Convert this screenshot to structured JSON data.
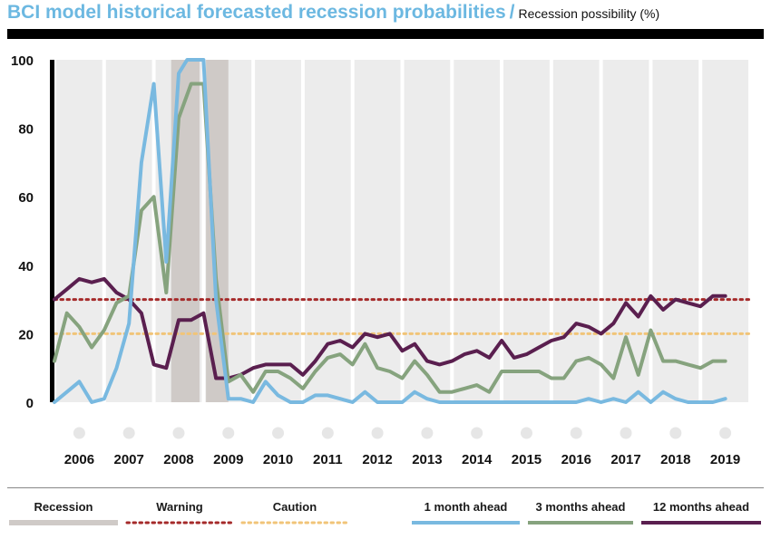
{
  "title": {
    "main": "BCI model historical forecasted recession probabilities",
    "separator": "/",
    "subtitle": "Recession possibility (%)"
  },
  "colors": {
    "one_month": "#79b9e0",
    "three_months": "#86a37e",
    "twelve_months": "#5a1f4f",
    "warning": "#a52a2a",
    "caution": "#f1c478",
    "recession": "#cfcac7",
    "panel": "#ececec",
    "marker": "#e6e6e6"
  },
  "legend": [
    {
      "key": "recession",
      "label": "Recession",
      "style": "solid-band"
    },
    {
      "key": "warning",
      "label": "Warning",
      "style": "dotted"
    },
    {
      "key": "caution",
      "label": "Caution",
      "style": "dotted"
    },
    {
      "key": "one_month",
      "label": "1 month ahead",
      "style": "line"
    },
    {
      "key": "three_months",
      "label": "3 months ahead",
      "style": "line"
    },
    {
      "key": "twelve_months",
      "label": "12 months ahead",
      "style": "line"
    }
  ],
  "chart_data": {
    "type": "line",
    "title": "BCI model historical forecasted recession probabilities",
    "ylabel": "Recession possibility (%)",
    "ylim": [
      0,
      100
    ],
    "yticks": [
      0,
      20,
      40,
      60,
      80,
      100
    ],
    "xlim": [
      2005.5,
      2019.5
    ],
    "xticks": [
      2006,
      2007,
      2008,
      2009,
      2010,
      2011,
      2012,
      2013,
      2014,
      2015,
      2016,
      2017,
      2018,
      2019
    ],
    "grid": "alternating year bands",
    "legend_position": "bottom",
    "recession_periods": [
      [
        2007.85,
        2008.42
      ],
      [
        2008.55,
        2009.0
      ]
    ],
    "reference_lines": [
      {
        "name": "Warning",
        "value": 30,
        "style": "dotted"
      },
      {
        "name": "Caution",
        "value": 20,
        "style": "dotted"
      }
    ],
    "series": [
      {
        "name": "1 month ahead",
        "color_key": "one_month",
        "x": [
          2005.5,
          2005.75,
          2006.0,
          2006.25,
          2006.5,
          2006.75,
          2007.0,
          2007.25,
          2007.5,
          2007.75,
          2008.0,
          2008.17,
          2008.33,
          2008.5,
          2008.75,
          2009.0,
          2009.25,
          2009.5,
          2009.75,
          2010.0,
          2010.25,
          2010.5,
          2010.75,
          2011.0,
          2011.25,
          2011.5,
          2011.75,
          2012.0,
          2012.25,
          2012.5,
          2012.75,
          2013.0,
          2013.25,
          2013.5,
          2013.75,
          2014.0,
          2014.25,
          2014.5,
          2014.75,
          2015.0,
          2015.25,
          2015.5,
          2015.75,
          2016.0,
          2016.25,
          2016.5,
          2016.75,
          2017.0,
          2017.25,
          2017.5,
          2017.75,
          2018.0,
          2018.25,
          2018.5,
          2018.75,
          2019.0
        ],
        "values": [
          0,
          3,
          6,
          0,
          1,
          10,
          23,
          70,
          93,
          41,
          96,
          100,
          100,
          100,
          30,
          1,
          1,
          0,
          6,
          2,
          0,
          0,
          2,
          2,
          1,
          0,
          3,
          0,
          0,
          0,
          3,
          1,
          0,
          0,
          0,
          0,
          0,
          0,
          0,
          0,
          0,
          0,
          0,
          0,
          1,
          0,
          1,
          0,
          3,
          0,
          3,
          1,
          0,
          0,
          0,
          1
        ]
      },
      {
        "name": "3 months ahead",
        "color_key": "three_months",
        "x": [
          2005.5,
          2005.75,
          2006.0,
          2006.25,
          2006.5,
          2006.75,
          2007.0,
          2007.25,
          2007.5,
          2007.75,
          2008.0,
          2008.25,
          2008.5,
          2008.75,
          2009.0,
          2009.25,
          2009.5,
          2009.75,
          2010.0,
          2010.25,
          2010.5,
          2010.75,
          2011.0,
          2011.25,
          2011.5,
          2011.75,
          2012.0,
          2012.25,
          2012.5,
          2012.75,
          2013.0,
          2013.25,
          2013.5,
          2013.75,
          2014.0,
          2014.25,
          2014.5,
          2014.75,
          2015.0,
          2015.25,
          2015.5,
          2015.75,
          2016.0,
          2016.25,
          2016.5,
          2016.75,
          2017.0,
          2017.25,
          2017.5,
          2017.75,
          2018.0,
          2018.25,
          2018.5,
          2018.75,
          2019.0
        ],
        "values": [
          12,
          26,
          22,
          16,
          21,
          29,
          31,
          56,
          60,
          32,
          83,
          93,
          93,
          36,
          6,
          8,
          3,
          9,
          9,
          7,
          4,
          9,
          13,
          14,
          11,
          17,
          10,
          9,
          7,
          12,
          8,
          3,
          3,
          4,
          5,
          3,
          9,
          9,
          9,
          9,
          7,
          7,
          12,
          13,
          11,
          7,
          19,
          8,
          21,
          12,
          12,
          11,
          10,
          12,
          12
        ]
      },
      {
        "name": "12 months ahead",
        "color_key": "twelve_months",
        "x": [
          2005.5,
          2005.75,
          2006.0,
          2006.25,
          2006.5,
          2006.75,
          2007.0,
          2007.25,
          2007.5,
          2007.75,
          2008.0,
          2008.25,
          2008.5,
          2008.75,
          2009.0,
          2009.25,
          2009.5,
          2009.75,
          2010.0,
          2010.25,
          2010.5,
          2010.75,
          2011.0,
          2011.25,
          2011.5,
          2011.75,
          2012.0,
          2012.25,
          2012.5,
          2012.75,
          2013.0,
          2013.25,
          2013.5,
          2013.75,
          2014.0,
          2014.25,
          2014.5,
          2014.75,
          2015.0,
          2015.25,
          2015.5,
          2015.75,
          2016.0,
          2016.25,
          2016.5,
          2016.75,
          2017.0,
          2017.25,
          2017.5,
          2017.75,
          2018.0,
          2018.25,
          2018.5,
          2018.75,
          2019.0
        ],
        "values": [
          30,
          33,
          36,
          35,
          36,
          32,
          30,
          26,
          11,
          10,
          24,
          24,
          26,
          7,
          7,
          8,
          10,
          11,
          11,
          11,
          8,
          12,
          17,
          18,
          16,
          20,
          19,
          20,
          15,
          17,
          12,
          11,
          12,
          14,
          15,
          13,
          18,
          13,
          14,
          16,
          18,
          19,
          23,
          22,
          20,
          23,
          29,
          25,
          31,
          27,
          30,
          29,
          28,
          31,
          31
        ]
      }
    ]
  }
}
